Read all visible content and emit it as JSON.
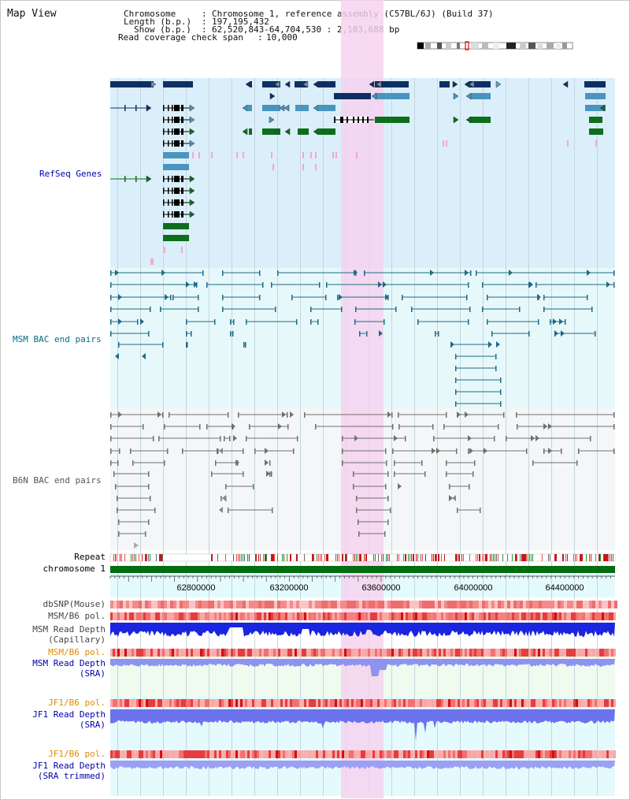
{
  "page_title": "Map View",
  "header": {
    "k_chromosome": "Chromosome",
    "v_chromosome": "Chromosome 1, reference assembly (C57BL/6J) (Build 37)",
    "k_length": "Length (b.p.)",
    "v_length": "197,195,432",
    "k_show": "Show (b.p.)",
    "v_show": "62,520,843-64,704,530 : 2,183,688 bp",
    "k_coverage": "Read coverage check span",
    "v_coverage": "10,000",
    "sep": ":"
  },
  "sections": {
    "refseq": "RefSeq Genes",
    "msm_bac": "MSM BAC end pairs",
    "b6n_bac": "B6N BAC end pairs"
  },
  "tracks": {
    "repeat": "Repeat",
    "chromosome": "chromosome 1",
    "dbsnp": "dbSNP(Mouse)",
    "msm_b6_pol_1": "MSM/B6 pol.",
    "msm_depth_cap_1": "MSM Read Depth",
    "msm_depth_cap_2": "(Capillary)",
    "msm_b6_pol_2": "MSM/B6 pol.",
    "msm_depth_sra_1": "MSM Read Depth",
    "msm_depth_sra_2": "(SRA)",
    "jf1_pol_1": "JF1/B6 pol.",
    "jf1_depth_sra_1": "JF1 Read Depth",
    "jf1_depth_sra_2": "(SRA)",
    "jf1_pol_2": "JF1/B6 pol.",
    "jf1_depth_trim_1": "JF1 Read Depth",
    "jf1_depth_trim_2": "(SRA trimmed)"
  },
  "axis_ticks": [
    "62800000",
    "63200000",
    "63600000",
    "64000000",
    "64400000"
  ],
  "colors": {
    "refseq_bg": "#dbeffb",
    "msm_bg": "#e7f8fb",
    "b6n_bg": "#f4f6f8",
    "highlight": "#f5d2ee",
    "gene_dark": "#0e2f63",
    "gene_mid": "#4a94c0",
    "gene_green": "#0d6e1c",
    "msm_pair": "#1f6a86",
    "b6n_pair": "#707070",
    "depth_blue": "#1a25e0",
    "depth_light": "#6b73ec",
    "label_blue": "#0000aa",
    "label_teal": "#006a88",
    "label_orange": "#e08a00"
  }
}
